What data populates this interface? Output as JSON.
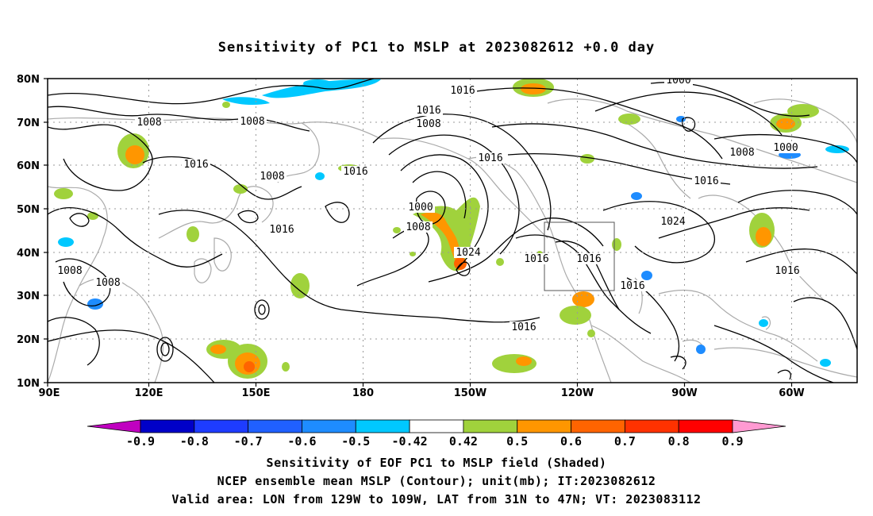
{
  "title": "Sensitivity of PC1 to MSLP at 2023082612 +0.0 day",
  "map": {
    "lat_labels": [
      "80N",
      "70N",
      "60N",
      "50N",
      "40N",
      "30N",
      "20N",
      "10N"
    ],
    "lon_labels": [
      "90E",
      "120E",
      "150E",
      "180",
      "150W",
      "120W",
      "90W",
      "60W"
    ],
    "contour_labels": [
      {
        "text": "1016"
      },
      {
        "text": "1000"
      },
      {
        "text": "1008"
      },
      {
        "text": "1008"
      },
      {
        "text": "1016"
      },
      {
        "text": "1016"
      },
      {
        "text": "1008"
      },
      {
        "text": "1016"
      },
      {
        "text": "1008"
      },
      {
        "text": "1016"
      },
      {
        "text": "1016"
      },
      {
        "text": "1000"
      },
      {
        "text": "1008"
      },
      {
        "text": "1016"
      },
      {
        "text": "1024"
      },
      {
        "text": "1024"
      },
      {
        "text": "1016"
      },
      {
        "text": "1016"
      },
      {
        "text": "1016"
      },
      {
        "text": "1016"
      },
      {
        "text": "1016"
      },
      {
        "text": "1008"
      },
      {
        "text": "1008"
      },
      {
        "text": "1000"
      },
      {
        "text": "1008"
      }
    ],
    "valid_area": {
      "lon_from": "129W",
      "lon_to": "109W",
      "lat_from": "31N",
      "lat_to": "47N"
    }
  },
  "colorbar": {
    "labels": [
      "-0.9",
      "-0.8",
      "-0.7",
      "-0.6",
      "-0.5",
      "-0.42",
      "0.42",
      "0.5",
      "0.6",
      "0.7",
      "0.8",
      "0.9"
    ],
    "colors": [
      "#c000c0",
      "#0000c8",
      "#1e3cff",
      "#2060ff",
      "#1e8cff",
      "#00c8ff",
      "#ffffff",
      "#a0d23c",
      "#ff9600",
      "#ff6400",
      "#ff3200",
      "#ff0000",
      "#ff9ad2"
    ]
  },
  "captions": [
    "Sensitivity of EOF PC1 to MSLP field (Shaded)",
    "NCEP ensemble mean MSLP (Contour); unit(mb); IT:2023082612",
    "Valid area: LON from 129W to 109W, LAT from 31N to 47N; VT: 2023083112"
  ]
}
